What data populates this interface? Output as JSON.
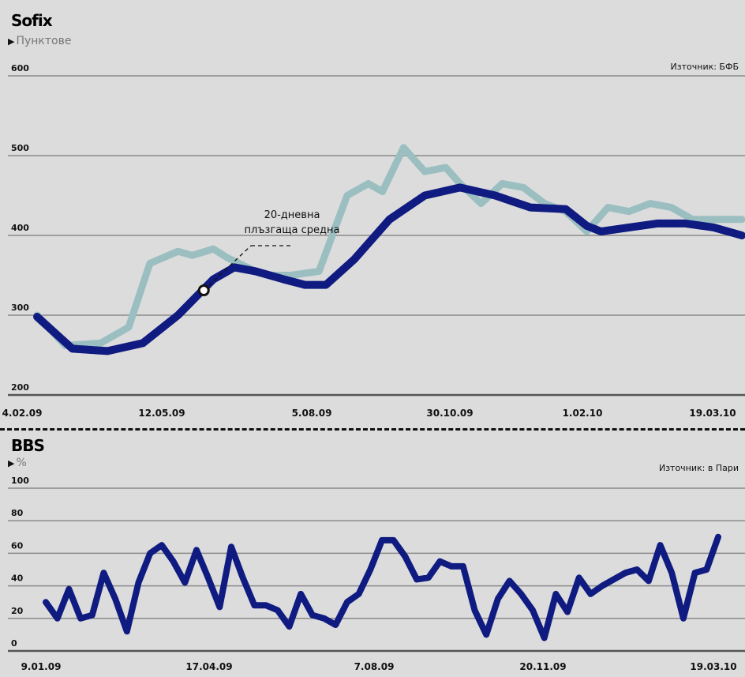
{
  "chart_data": [
    {
      "type": "line",
      "title": "Sofix",
      "subtitle": "Пунктове",
      "source": "Източник: БФБ",
      "ylim": [
        200,
        600
      ],
      "yticks": [
        600,
        500,
        400,
        300,
        200
      ],
      "xtick_labels": [
        "4.02.09",
        "12.05.09",
        "5.08.09",
        "30.10.09",
        "1.02.10",
        "19.03.10"
      ],
      "annotation": "20-дневна\nплъзгаща средна",
      "grid": true,
      "series": [
        {
          "color": "#9bbfc0",
          "x": [
            0.0,
            0.04,
            0.09,
            0.13,
            0.16,
            0.2,
            0.22,
            0.25,
            0.27,
            0.31,
            0.33,
            0.36,
            0.4,
            0.44,
            0.47,
            0.49,
            0.52,
            0.55,
            0.58,
            0.6,
            0.63,
            0.66,
            0.69,
            0.72,
            0.75,
            0.78,
            0.81,
            0.84,
            0.87,
            0.9,
            0.93,
            0.96,
            1.0
          ],
          "values": [
            300,
            262,
            265,
            285,
            365,
            380,
            375,
            383,
            372,
            355,
            350,
            350,
            355,
            450,
            465,
            455,
            510,
            480,
            485,
            465,
            440,
            465,
            460,
            440,
            430,
            405,
            435,
            430,
            440,
            435,
            420,
            420,
            420
          ]
        },
        {
          "color": "#0f1b80",
          "x": [
            0.0,
            0.05,
            0.1,
            0.15,
            0.2,
            0.25,
            0.28,
            0.31,
            0.35,
            0.38,
            0.41,
            0.45,
            0.5,
            0.55,
            0.6,
            0.65,
            0.7,
            0.75,
            0.78,
            0.8,
            0.84,
            0.88,
            0.92,
            0.96,
            1.0
          ],
          "values": [
            298,
            258,
            255,
            265,
            300,
            345,
            360,
            355,
            345,
            338,
            338,
            370,
            420,
            450,
            460,
            450,
            435,
            433,
            412,
            405,
            410,
            415,
            415,
            410,
            400
          ]
        }
      ]
    },
    {
      "type": "line",
      "title": "BBS",
      "subtitle": "%",
      "source": "Източник: в Пари",
      "ylim": [
        0,
        100
      ],
      "yticks": [
        100,
        80,
        60,
        40,
        20,
        0
      ],
      "xtick_labels": [
        "9.01.09",
        "17.04.09",
        "7.08.09",
        "20.11.09",
        "19.03.10"
      ],
      "grid": true,
      "series": [
        {
          "color": "#0f1b80",
          "values": [
            30,
            20,
            38,
            20,
            22,
            48,
            32,
            12,
            42,
            60,
            65,
            55,
            42,
            62,
            45,
            27,
            64,
            45,
            28,
            28,
            25,
            15,
            35,
            22,
            20,
            16,
            30,
            35,
            50,
            68,
            68,
            58,
            44,
            45,
            55,
            52,
            52,
            25,
            10,
            32,
            43,
            35,
            25,
            8,
            35,
            24,
            45,
            35,
            40,
            44,
            48,
            50,
            43,
            65,
            48,
            20,
            48,
            50,
            70
          ]
        }
      ]
    }
  ]
}
